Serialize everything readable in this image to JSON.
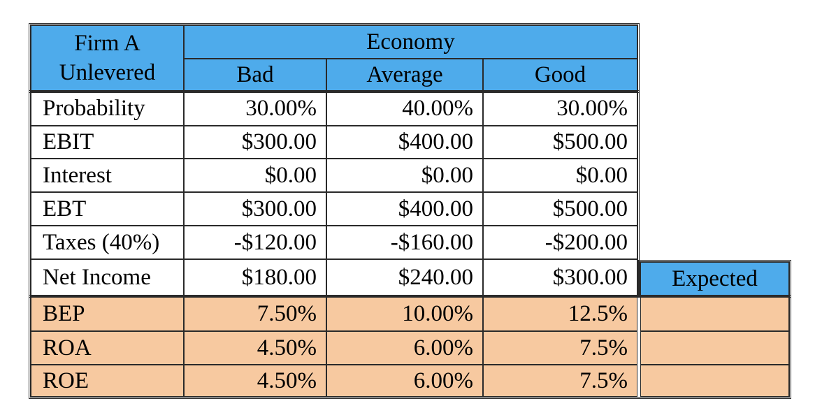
{
  "header": {
    "firm_line1": "Firm A",
    "firm_line2": "Unlevered",
    "economy": "Economy",
    "columns": [
      "Bad",
      "Average",
      "Good"
    ],
    "expected": "Expected"
  },
  "rows": [
    {
      "label": "Probability",
      "values": [
        "30.00%",
        "40.00%",
        "30.00%"
      ]
    },
    {
      "label": "EBIT",
      "values": [
        "$300.00",
        "$400.00",
        "$500.00"
      ]
    },
    {
      "label": "Interest",
      "values": [
        "$0.00",
        "$0.00",
        "$0.00"
      ]
    },
    {
      "label": "EBT",
      "values": [
        "$300.00",
        "$400.00",
        "$500.00"
      ]
    },
    {
      "label": "Taxes (40%)",
      "values": [
        "-$120.00",
        "-$160.00",
        "-$200.00"
      ]
    },
    {
      "label": "Net Income",
      "values": [
        "$180.00",
        "$240.00",
        "$300.00"
      ]
    }
  ],
  "ratios": [
    {
      "label": "BEP",
      "values": [
        "7.50%",
        "10.00%",
        "12.5%"
      ],
      "expected": ""
    },
    {
      "label": "ROA",
      "values": [
        "4.50%",
        "6.00%",
        "7.5%"
      ],
      "expected": ""
    },
    {
      "label": "ROE",
      "values": [
        "4.50%",
        "6.00%",
        "7.5%"
      ],
      "expected": ""
    }
  ],
  "colors": {
    "header_blue": "#4eabeb",
    "ratio_orange": "#f7c9a0"
  }
}
